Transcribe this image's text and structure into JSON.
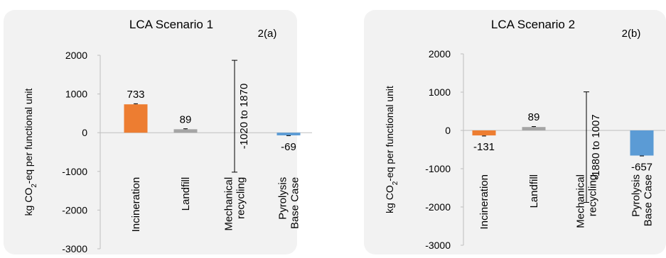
{
  "chart_data": [
    {
      "type": "bar",
      "title": "LCA Scenario 1",
      "panel_label": "2(a)",
      "ylabel": "kg CO",
      "ylabel_sub": "2",
      "ylabel_rest": "-eq per functional unit",
      "ylim": [
        -3000,
        2000
      ],
      "yticks": [
        2000,
        1000,
        0,
        -1000,
        -2000,
        -3000
      ],
      "ytick_labels": [
        "2000",
        "1000",
        "0",
        "-1000",
        "-2000",
        "-3000"
      ],
      "categories": [
        {
          "lines": [
            "Incineration"
          ]
        },
        {
          "lines": [
            "Landfill"
          ]
        },
        {
          "lines": [
            "Mechanical",
            "recycling"
          ]
        },
        {
          "lines": [
            "Pyrolysis",
            "Base Case"
          ]
        }
      ],
      "values": [
        733,
        89,
        null,
        -69
      ],
      "value_labels": [
        "733",
        "89",
        "",
        "-69"
      ],
      "bar_colors": [
        "#ED7D31",
        "#A5A5A5",
        "#A5A5A5",
        "#5B9BD5"
      ],
      "error": [
        15,
        12,
        null,
        8
      ],
      "range_bar": {
        "category_index": 2,
        "low": -1020,
        "high": 1870,
        "label": "-1020 to 1870"
      }
    },
    {
      "type": "bar",
      "title": "LCA Scenario 2",
      "panel_label": "2(b)",
      "ylabel": "kg CO",
      "ylabel_sub": "2",
      "ylabel_rest": "-eq per functional unit",
      "ylim": [
        -3000,
        2000
      ],
      "yticks": [
        2000,
        1000,
        0,
        -1000,
        -2000,
        -3000
      ],
      "ytick_labels": [
        "2000",
        "1000",
        "0",
        "-1000",
        "-2000",
        "-3000"
      ],
      "categories": [
        {
          "lines": [
            "Incineration"
          ]
        },
        {
          "lines": [
            "Landfill"
          ]
        },
        {
          "lines": [
            "Mechanical",
            "recycling"
          ]
        },
        {
          "lines": [
            "Pyrolysis",
            "Base Case"
          ]
        }
      ],
      "values": [
        -131,
        89,
        null,
        -657
      ],
      "value_labels": [
        "-131",
        "89",
        "",
        "-657"
      ],
      "bar_colors": [
        "#ED7D31",
        "#A5A5A5",
        "#A5A5A5",
        "#5B9BD5"
      ],
      "error": [
        15,
        12,
        null,
        10
      ],
      "range_bar": {
        "category_index": 2,
        "low": -1880,
        "high": 1007,
        "label": "-1880 to 1007"
      }
    }
  ]
}
